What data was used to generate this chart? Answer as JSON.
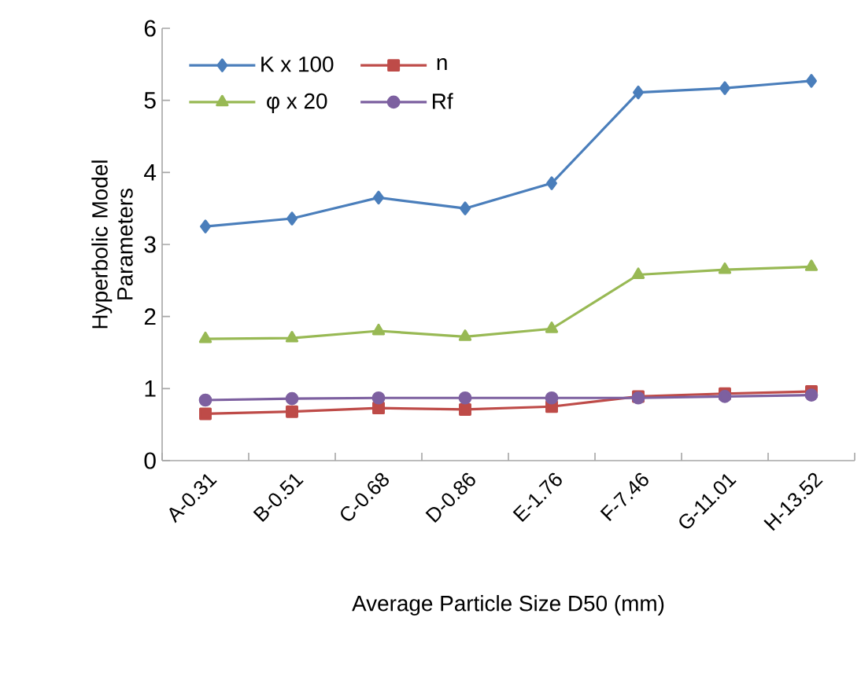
{
  "chart_data": {
    "type": "line",
    "xlabel": "Average Particle Size D50 (mm)",
    "ylabel": "Hyperbolic Model Parameters",
    "categories": [
      "A-0.31",
      "B-0.51",
      "C-0.68",
      "D-0.86",
      "E-1.76",
      "F-7.46",
      "G-11.01",
      "H-13.52"
    ],
    "series": [
      {
        "name": "K x 100",
        "color": "#4a7ebb",
        "marker": "diamond",
        "values": [
          3.25,
          3.36,
          3.65,
          3.5,
          3.85,
          5.11,
          5.17,
          5.27
        ]
      },
      {
        "name": "n",
        "color": "#be4b48",
        "marker": "square",
        "values": [
          0.65,
          0.68,
          0.73,
          0.71,
          0.75,
          0.89,
          0.93,
          0.96
        ]
      },
      {
        "name": "φ x 20",
        "color": "#98b954",
        "marker": "triangle",
        "values": [
          1.69,
          1.7,
          1.8,
          1.72,
          1.83,
          2.58,
          2.65,
          2.69
        ]
      },
      {
        "name": "Rf",
        "color": "#7d60a0",
        "marker": "circle",
        "values": [
          0.84,
          0.86,
          0.87,
          0.87,
          0.87,
          0.87,
          0.89,
          0.91
        ]
      }
    ],
    "ylim": [
      0,
      6
    ],
    "yticks": [
      0,
      1,
      2,
      3,
      4,
      5,
      6
    ],
    "legend": "top left"
  }
}
